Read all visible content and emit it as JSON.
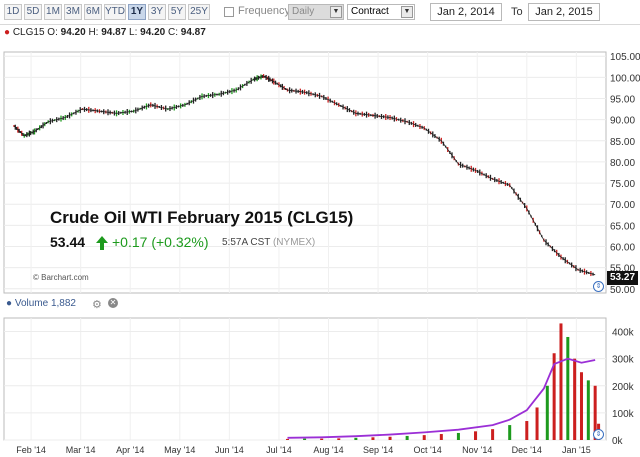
{
  "toolbar": {
    "ranges": [
      "1D",
      "5D",
      "1M",
      "3M",
      "6M",
      "YTD",
      "1Y",
      "3Y",
      "5Y",
      "25Y"
    ],
    "active_range": "1Y",
    "frequency_label": "Frequency",
    "frequency_value": "Daily",
    "contract_value": "Contract",
    "from_date": "Jan 2, 2014",
    "to_label": "To",
    "to_date": "Jan 2, 2015"
  },
  "ohlc": {
    "symbol": "CLG15",
    "o_label": "O:",
    "open": "94.20",
    "h_label": "H:",
    "high": "94.87",
    "l_label": "L:",
    "low": "94.20",
    "c_label": "C:",
    "close": "94.87"
  },
  "overlay": {
    "title": "Crude Oil WTI February 2015 (CLG15)",
    "last": "53.44",
    "change": "+0.17 (+0.32%)",
    "time": "5:57A CST",
    "exchange": "(NYMEX)",
    "credit": "© Barchart.com"
  },
  "last_price_tag": "53.27",
  "volume": {
    "label": "Volume",
    "value": "1,882"
  },
  "colors": {
    "up": "#1d9a1d",
    "down": "#cc1f1f",
    "volume_avg": "#9b2fd6",
    "tag_bg": "#111111"
  },
  "chart_data": {
    "type": "line",
    "title": "Crude Oil WTI February 2015 (CLG15)",
    "x_labels": [
      "Feb '14",
      "Mar '14",
      "Apr '14",
      "May '14",
      "Jun '14",
      "Jul '14",
      "Aug '14",
      "Sep '14",
      "Oct '14",
      "Nov '14",
      "Dec '14",
      "Jan '15"
    ],
    "price_axis": {
      "ticks": [
        50,
        55,
        60,
        65,
        70,
        75,
        80,
        85,
        90,
        95,
        100,
        105
      ],
      "range": [
        49,
        106
      ]
    },
    "price_points": [
      [
        0,
        88.5
      ],
      [
        0.3,
        86.2
      ],
      [
        0.6,
        87.2
      ],
      [
        1.0,
        89.5
      ],
      [
        1.5,
        90.5
      ],
      [
        2.0,
        92.5
      ],
      [
        2.5,
        92.0
      ],
      [
        3.0,
        91.5
      ],
      [
        3.5,
        92.0
      ],
      [
        4.0,
        93.5
      ],
      [
        4.5,
        92.5
      ],
      [
        5.0,
        93.5
      ],
      [
        5.5,
        95.5
      ],
      [
        6.0,
        96.0
      ],
      [
        6.5,
        97.0
      ],
      [
        7.0,
        99.5
      ],
      [
        7.3,
        100.3
      ],
      [
        7.6,
        99.0
      ],
      [
        8.0,
        97.0
      ],
      [
        8.5,
        96.5
      ],
      [
        9.0,
        95.5
      ],
      [
        9.5,
        93.5
      ],
      [
        10.0,
        91.5
      ],
      [
        10.5,
        91.0
      ],
      [
        11.0,
        90.5
      ],
      [
        11.5,
        89.5
      ],
      [
        12.0,
        88.0
      ],
      [
        12.5,
        85.0
      ],
      [
        13.0,
        79.5
      ],
      [
        13.5,
        78.0
      ],
      [
        14.0,
        76.0
      ],
      [
        14.5,
        74.5
      ],
      [
        15.0,
        69.0
      ],
      [
        15.5,
        61.5
      ],
      [
        16.0,
        57.5
      ],
      [
        16.5,
        54.5
      ],
      [
        17.0,
        53.3
      ]
    ],
    "volume_axis": {
      "ticks": [
        "0k",
        "100k",
        "200k",
        "300k",
        "400k"
      ],
      "range": [
        0,
        450
      ]
    },
    "volume_bars": [
      [
        8.0,
        4
      ],
      [
        8.5,
        5
      ],
      [
        9.0,
        5
      ],
      [
        9.5,
        6
      ],
      [
        10.0,
        8
      ],
      [
        10.5,
        10
      ],
      [
        11.0,
        12
      ],
      [
        11.5,
        15
      ],
      [
        12.0,
        18
      ],
      [
        12.5,
        22
      ],
      [
        13.0,
        26
      ],
      [
        13.5,
        32
      ],
      [
        14.0,
        40
      ],
      [
        14.5,
        55
      ],
      [
        15.0,
        70
      ],
      [
        15.3,
        120
      ],
      [
        15.6,
        200
      ],
      [
        15.8,
        320
      ],
      [
        16.0,
        430
      ],
      [
        16.2,
        380
      ],
      [
        16.4,
        300
      ],
      [
        16.6,
        250
      ],
      [
        16.8,
        220
      ],
      [
        17.0,
        200
      ],
      [
        17.1,
        60
      ]
    ],
    "volume_avg": [
      [
        8.0,
        8
      ],
      [
        9.0,
        10
      ],
      [
        10.0,
        14
      ],
      [
        11.0,
        20
      ],
      [
        12.0,
        28
      ],
      [
        13.0,
        38
      ],
      [
        14.0,
        55
      ],
      [
        14.5,
        75
      ],
      [
        15.0,
        110
      ],
      [
        15.5,
        190
      ],
      [
        15.8,
        280
      ],
      [
        16.2,
        300
      ],
      [
        16.6,
        285
      ],
      [
        17.0,
        295
      ]
    ]
  }
}
